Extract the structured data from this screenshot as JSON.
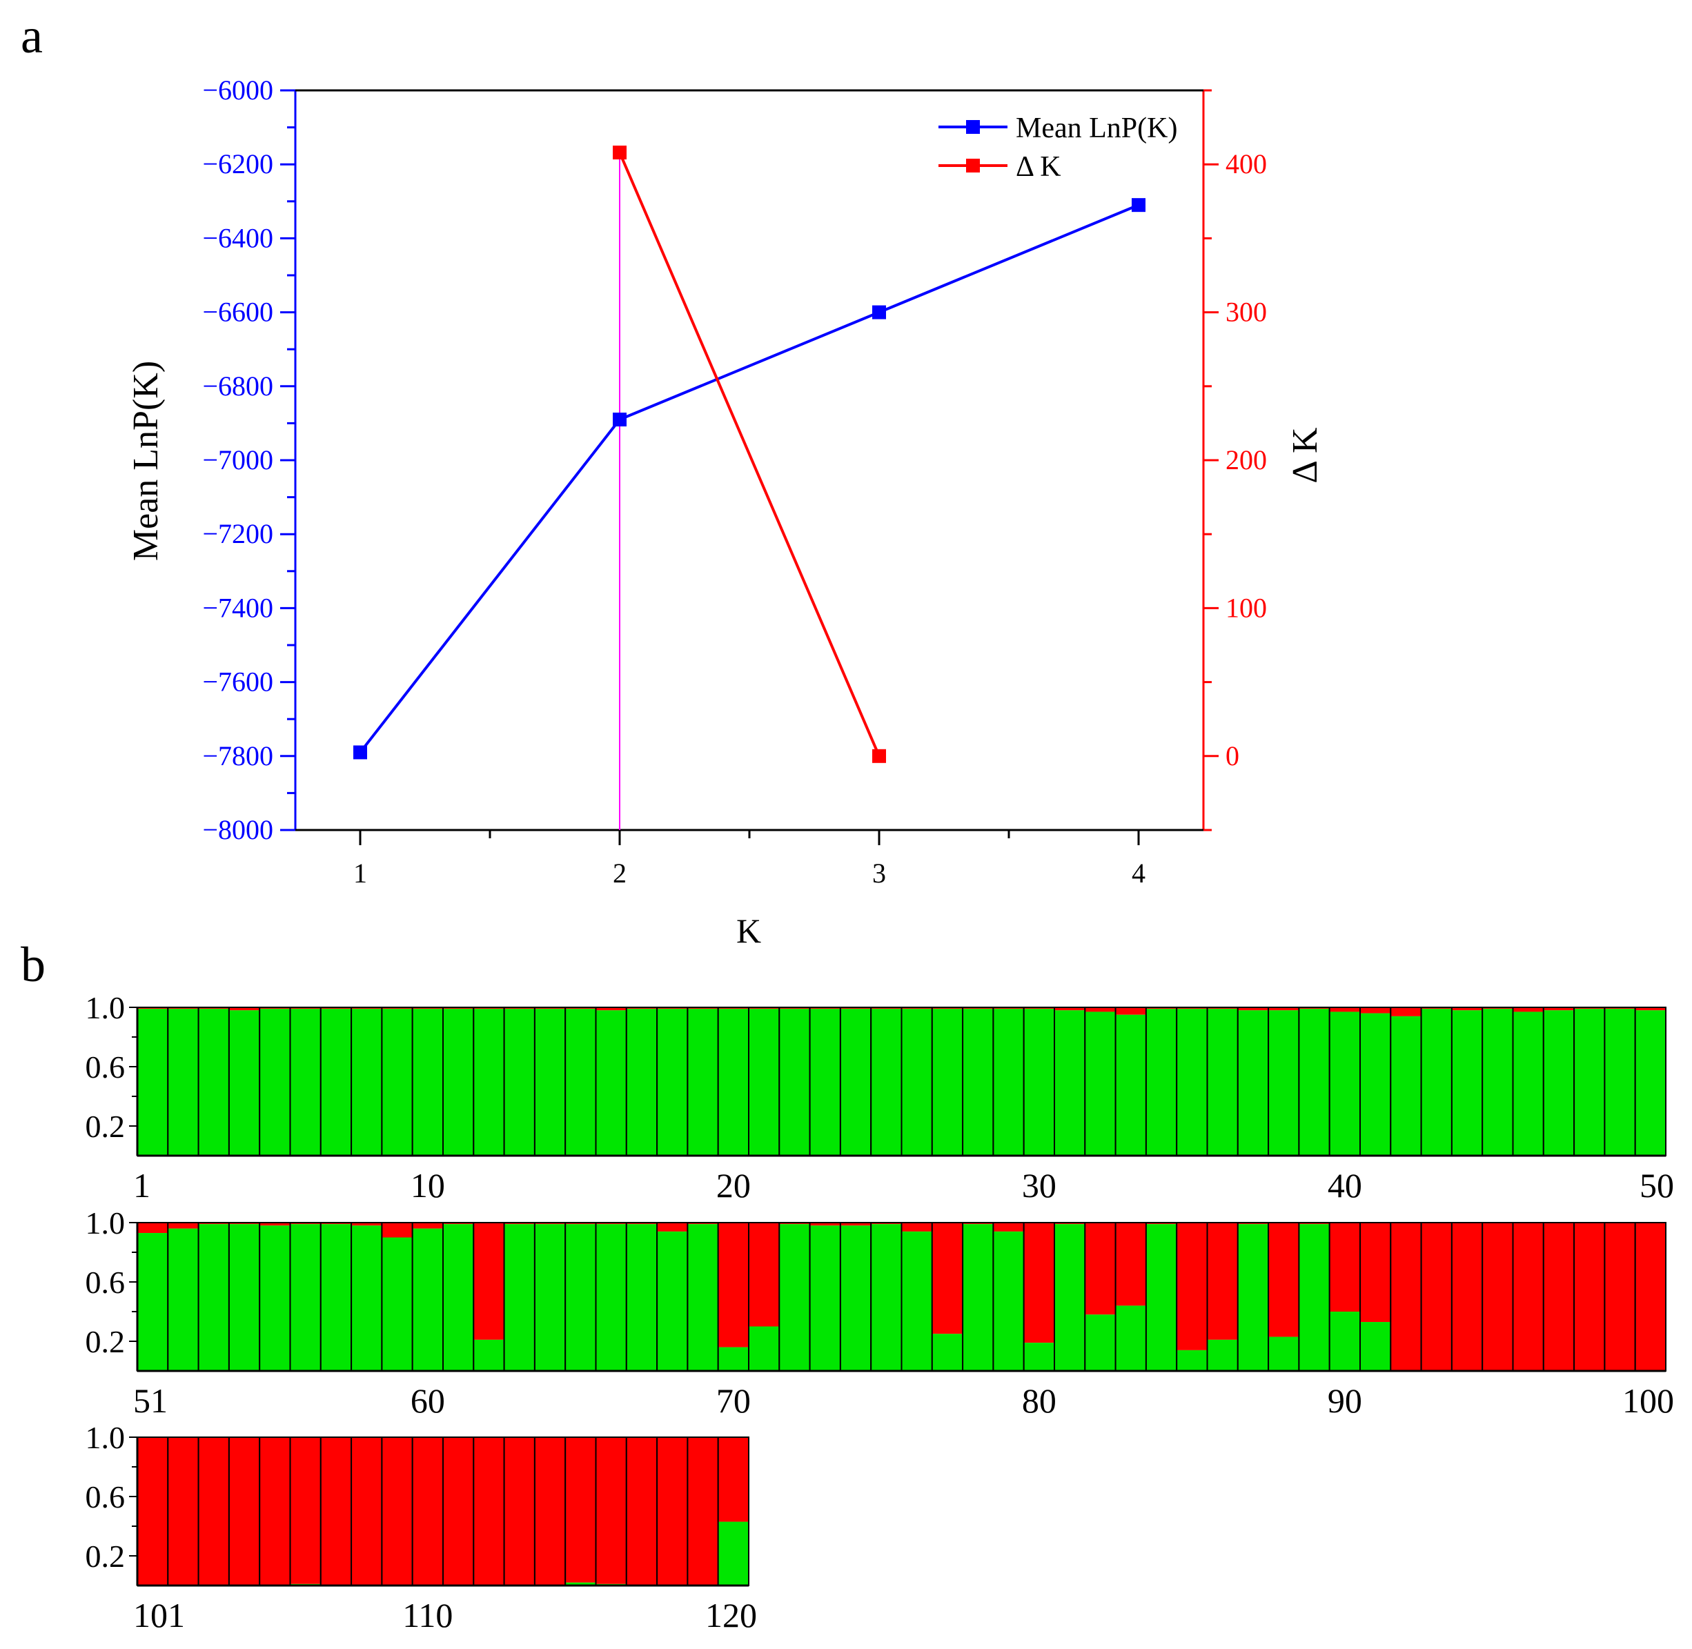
{
  "panel_labels": {
    "a": "a",
    "b": "b"
  },
  "chart_data": [
    {
      "type": "line",
      "panel": "a",
      "x": [
        1,
        2,
        3,
        4
      ],
      "xlabel": "K",
      "x_ticks": [
        "1",
        "2",
        "3",
        "4"
      ],
      "xlim": [
        0.75,
        4.25
      ],
      "series": [
        {
          "name": "Mean LnP(K)",
          "axis": "left",
          "color": "#0000ff",
          "marker": "square",
          "x": [
            1,
            2,
            3,
            4
          ],
          "values": [
            -7790,
            -6890,
            -6600,
            -6310
          ]
        },
        {
          "name": "Δ K",
          "axis": "right",
          "color": "#ff0000",
          "marker": "square",
          "x": [
            2,
            3
          ],
          "values": [
            408,
            0
          ]
        }
      ],
      "y_left": {
        "label": "Mean LnP(K)",
        "lim": [
          -8000,
          -6000
        ],
        "ticks": [
          -8000,
          -7800,
          -7600,
          -7400,
          -7200,
          -7000,
          -6800,
          -6600,
          -6400,
          -6200,
          -6000
        ],
        "tick_labels": [
          "−8000",
          "−7800",
          "−7600",
          "−7400",
          "−7200",
          "−7000",
          "−6800",
          "−6600",
          "−6400",
          "−6200",
          "−6000"
        ]
      },
      "y_right": {
        "label": "Δ K",
        "lim": [
          -50,
          450
        ],
        "ticks": [
          0,
          100,
          200,
          300,
          400
        ],
        "tick_labels": [
          "0",
          "100",
          "200",
          "300",
          "400"
        ]
      },
      "vertical_line": {
        "x": 2,
        "color": "#ff00ff"
      },
      "legend": "top-right",
      "grid": false
    },
    {
      "type": "bar",
      "panel": "b",
      "stacked": true,
      "description": "STRUCTURE membership proportions (K=2) for 120 accessions; value = green cluster fraction, remainder red",
      "series_colors": {
        "green": "#00e600",
        "red": "#ff0000"
      },
      "y_ticks": [
        "1.0",
        "0.6",
        "0.2"
      ],
      "ylim": [
        0,
        1
      ],
      "rows": [
        {
          "start": 1,
          "count": 50,
          "tick_labels": [
            "1",
            "10",
            "20",
            "30",
            "40",
            "50"
          ],
          "green": [
            0.99,
            0.99,
            0.99,
            0.98,
            0.99,
            0.99,
            0.99,
            0.99,
            0.99,
            0.99,
            0.99,
            0.99,
            0.99,
            0.99,
            0.99,
            0.98,
            0.99,
            0.99,
            0.99,
            0.99,
            0.99,
            0.99,
            0.99,
            0.99,
            0.99,
            0.99,
            0.99,
            0.99,
            0.99,
            0.99,
            0.98,
            0.97,
            0.95,
            0.99,
            0.99,
            0.99,
            0.98,
            0.98,
            0.99,
            0.97,
            0.96,
            0.94,
            0.99,
            0.98,
            0.99,
            0.97,
            0.98,
            0.99,
            0.99,
            0.98
          ]
        },
        {
          "start": 51,
          "count": 50,
          "tick_labels": [
            "51",
            "60",
            "70",
            "80",
            "90",
            "100"
          ],
          "green": [
            0.93,
            0.96,
            0.99,
            0.99,
            0.98,
            0.99,
            0.99,
            0.98,
            0.9,
            0.96,
            0.99,
            0.21,
            0.99,
            0.99,
            0.99,
            0.99,
            0.99,
            0.94,
            0.99,
            0.16,
            0.3,
            0.99,
            0.98,
            0.98,
            0.99,
            0.94,
            0.25,
            0.99,
            0.94,
            0.19,
            0.99,
            0.38,
            0.44,
            0.99,
            0.14,
            0.21,
            0.99,
            0.23,
            0.99,
            0.4,
            0.33,
            0,
            0,
            0,
            0,
            0,
            0,
            0,
            0,
            0
          ]
        },
        {
          "start": 101,
          "count": 20,
          "tick_labels": [
            "101",
            "110",
            "120"
          ],
          "green": [
            0,
            0,
            0,
            0,
            0,
            0.01,
            0,
            0,
            0,
            0,
            0,
            0,
            0,
            0,
            0.02,
            0.01,
            0,
            0,
            0,
            0.43
          ]
        }
      ]
    }
  ]
}
